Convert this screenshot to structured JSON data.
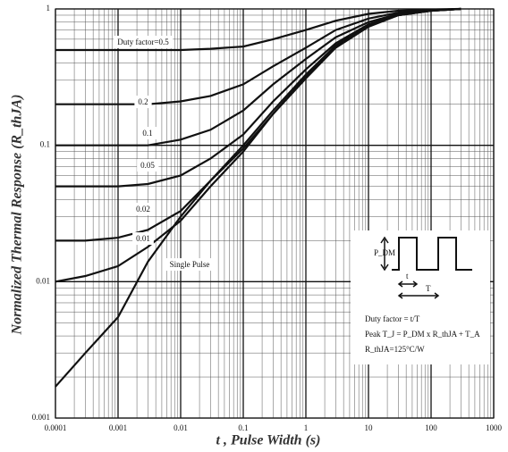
{
  "chart_data": {
    "type": "line",
    "x_label": "t , Pulse Width (s)",
    "y_label": "Normalized Thermal Response (R_thJA)",
    "log_x": true,
    "log_y": true,
    "grid": true,
    "color": "#111111",
    "xlim": [
      0.0001,
      1000
    ],
    "ylim": [
      0.001,
      1
    ],
    "xticks": [
      0.0001,
      0.001,
      0.01,
      0.1,
      1,
      10,
      100,
      1000
    ],
    "yticks": [
      0.001,
      0.01,
      0.1,
      1
    ],
    "x": [
      0.0001,
      0.0003,
      0.001,
      0.003,
      0.01,
      0.03,
      0.1,
      0.3,
      1,
      3,
      10,
      30,
      100,
      300
    ],
    "series": [
      {
        "name": "Duty factor=0.5",
        "values": [
          0.5,
          0.5,
          0.5,
          0.5,
          0.5,
          0.51,
          0.53,
          0.6,
          0.7,
          0.82,
          0.92,
          0.97,
          0.99,
          1
        ]
      },
      {
        "name": "0.2",
        "values": [
          0.2,
          0.2,
          0.2,
          0.2,
          0.21,
          0.23,
          0.28,
          0.38,
          0.52,
          0.7,
          0.85,
          0.94,
          0.98,
          1
        ]
      },
      {
        "name": "0.1",
        "values": [
          0.1,
          0.1,
          0.1,
          0.1,
          0.11,
          0.13,
          0.18,
          0.28,
          0.43,
          0.62,
          0.8,
          0.92,
          0.98,
          1
        ]
      },
      {
        "name": "0.05",
        "values": [
          0.05,
          0.05,
          0.05,
          0.052,
          0.06,
          0.08,
          0.12,
          0.21,
          0.36,
          0.56,
          0.77,
          0.91,
          0.97,
          1
        ]
      },
      {
        "name": "0.02",
        "values": [
          0.02,
          0.02,
          0.021,
          0.024,
          0.033,
          0.055,
          0.1,
          0.18,
          0.33,
          0.54,
          0.76,
          0.9,
          0.97,
          1
        ]
      },
      {
        "name": "0.01",
        "values": [
          0.01,
          0.011,
          0.013,
          0.018,
          0.028,
          0.05,
          0.09,
          0.17,
          0.32,
          0.53,
          0.75,
          0.9,
          0.97,
          1
        ]
      },
      {
        "name": "Single Pulse",
        "values": [
          0.0017,
          0.003,
          0.0055,
          0.014,
          0.03,
          0.055,
          0.095,
          0.17,
          0.31,
          0.52,
          0.74,
          0.9,
          0.97,
          1
        ]
      }
    ],
    "inset": {
      "pdm": "P_DM",
      "t": "t",
      "T": "T",
      "lines": [
        "Duty factor = t/T",
        "Peak T_J = P_DM x R_thJA + T_A",
        "R_thJA=125°C/W"
      ]
    }
  }
}
